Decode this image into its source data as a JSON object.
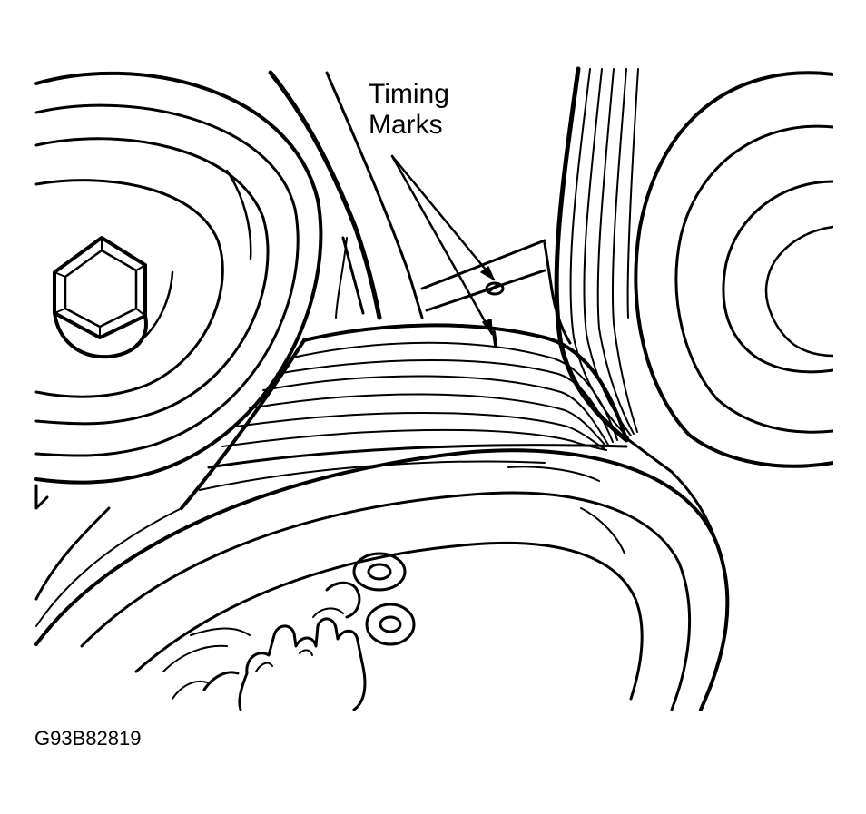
{
  "callout": {
    "line1": "Timing",
    "line2": "Marks"
  },
  "figure_id": "G93B82819",
  "colors": {
    "ink": "#000000",
    "paper": "#ffffff"
  }
}
